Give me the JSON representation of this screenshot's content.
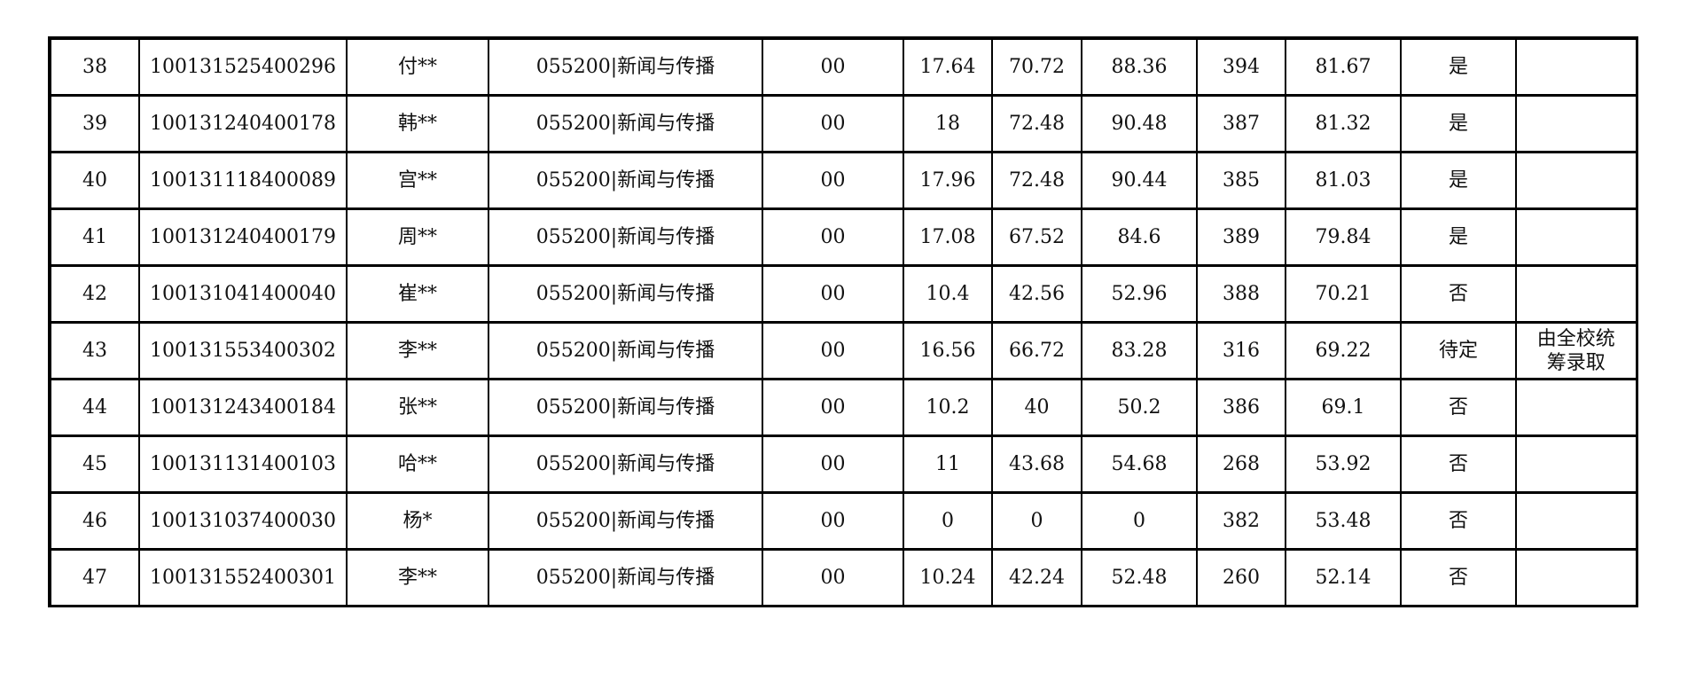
{
  "rows": [
    {
      "no": "38",
      "id": "100131525400296",
      "name": "付**",
      "major": "055200|新闻与传播",
      "dir": "00",
      "s1": "17.64",
      "s2": "70.72",
      "s3": "88.36",
      "s4": "394",
      "s5": "81.67",
      "result": "是",
      "note": ""
    },
    {
      "no": "39",
      "id": "100131240400178",
      "name": "韩**",
      "major": "055200|新闻与传播",
      "dir": "00",
      "s1": "18",
      "s2": "72.48",
      "s3": "90.48",
      "s4": "387",
      "s5": "81.32",
      "result": "是",
      "note": ""
    },
    {
      "no": "40",
      "id": "100131118400089",
      "name": "宫**",
      "major": "055200|新闻与传播",
      "dir": "00",
      "s1": "17.96",
      "s2": "72.48",
      "s3": "90.44",
      "s4": "385",
      "s5": "81.03",
      "result": "是",
      "note": ""
    },
    {
      "no": "41",
      "id": "100131240400179",
      "name": "周**",
      "major": "055200|新闻与传播",
      "dir": "00",
      "s1": "17.08",
      "s2": "67.52",
      "s3": "84.6",
      "s4": "389",
      "s5": "79.84",
      "result": "是",
      "note": ""
    },
    {
      "no": "42",
      "id": "100131041400040",
      "name": "崔**",
      "major": "055200|新闻与传播",
      "dir": "00",
      "s1": "10.4",
      "s2": "42.56",
      "s3": "52.96",
      "s4": "388",
      "s5": "70.21",
      "result": "否",
      "note": ""
    },
    {
      "no": "43",
      "id": "100131553400302",
      "name": "李**",
      "major": "055200|新闻与传播",
      "dir": "00",
      "s1": "16.56",
      "s2": "66.72",
      "s3": "83.28",
      "s4": "316",
      "s5": "69.22",
      "result": "待定",
      "note": "由全校统筹录取"
    },
    {
      "no": "44",
      "id": "100131243400184",
      "name": "张**",
      "major": "055200|新闻与传播",
      "dir": "00",
      "s1": "10.2",
      "s2": "40",
      "s3": "50.2",
      "s4": "386",
      "s5": "69.1",
      "result": "否",
      "note": ""
    },
    {
      "no": "45",
      "id": "100131131400103",
      "name": "哈**",
      "major": "055200|新闻与传播",
      "dir": "00",
      "s1": "11",
      "s2": "43.68",
      "s3": "54.68",
      "s4": "268",
      "s5": "53.92",
      "result": "否",
      "note": ""
    },
    {
      "no": "46",
      "id": "100131037400030",
      "name": "杨*",
      "major": "055200|新闻与传播",
      "dir": "00",
      "s1": "0",
      "s2": "0",
      "s3": "0",
      "s4": "382",
      "s5": "53.48",
      "result": "否",
      "note": ""
    },
    {
      "no": "47",
      "id": "100131552400301",
      "name": "李**",
      "major": "055200|新闻与传播",
      "dir": "00",
      "s1": "10.24",
      "s2": "42.24",
      "s3": "52.48",
      "s4": "260",
      "s5": "52.14",
      "result": "否",
      "note": ""
    }
  ]
}
